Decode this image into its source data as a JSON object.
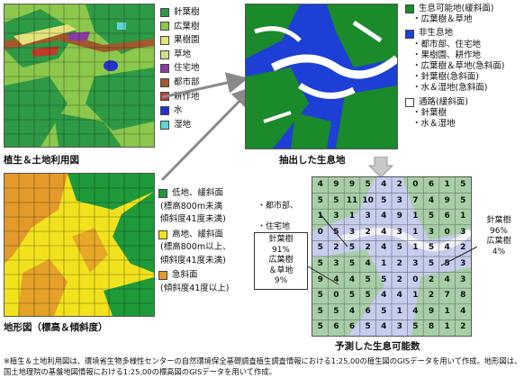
{
  "vegetation_legend": [
    {
      "label": "針葉樹",
      "color": "#2e9a45"
    },
    {
      "label": "広葉樹",
      "color": "#8cc84b"
    },
    {
      "label": "果樹園",
      "color": "#e3e37a"
    },
    {
      "label": "草地",
      "color": "#cde08a"
    },
    {
      "label": "住宅地",
      "color": "#8b3aa4"
    },
    {
      "label": "都市部",
      "color": "#a05a2c"
    },
    {
      "label": "耕作地",
      "color": "#c23b2c"
    },
    {
      "label": "水",
      "color": "#2433c9"
    },
    {
      "label": "湿地",
      "color": "#5fd6d6"
    }
  ],
  "vegetation_caption": "植生＆土地利用図",
  "terrain_legend": [
    {
      "label": "低地、緩斜面",
      "sub": [
        "(標高800m未満",
        "傾斜度41度未満)"
      ],
      "color": "#1f9a3a"
    },
    {
      "label": "高地、緩斜面",
      "sub": [
        "(標高800m以上、",
        "傾斜度41度未満)"
      ],
      "color": "#f2e21d"
    },
    {
      "label": "急斜面",
      "sub": [
        "(傾斜度41度以上)"
      ],
      "color": "#e39a2a"
    }
  ],
  "terrain_caption": "地形図（標高＆傾斜度）",
  "habitat_caption": "抽出した生息地",
  "habitat_legend": {
    "possible": {
      "label": "生息可能地(緩斜面)",
      "items": [
        "・広葉樹＆草地"
      ],
      "color": "#1a8a2a"
    },
    "non": {
      "label": "非生息地",
      "items": [
        "・都市部、住宅地",
        "・果樹園、耕作地",
        "・広葉樹＆草地(急斜面)",
        "・針葉樹(急斜面)",
        "・水＆湿地(急斜面)"
      ],
      "color": "#1d3fd6"
    },
    "passage": {
      "label": "通路(緩斜面)",
      "items": [
        "・針葉樹",
        "・水＆湿地"
      ],
      "color": "#ffffff"
    }
  },
  "prediction_caption": "予測した生息可能数",
  "prediction_grid": [
    [
      4,
      9,
      9,
      5,
      4,
      2,
      0,
      6,
      1,
      5
    ],
    [
      5,
      5,
      11,
      10,
      5,
      3,
      7,
      4,
      9,
      5
    ],
    [
      1,
      3,
      1,
      3,
      4,
      9,
      1,
      5,
      6,
      1
    ],
    [
      0,
      5,
      3,
      2,
      4,
      3,
      1,
      3,
      0,
      3
    ],
    [
      5,
      2,
      5,
      2,
      4,
      5,
      1,
      5,
      4,
      2
    ],
    [
      5,
      3,
      5,
      4,
      1,
      2,
      3,
      5,
      5,
      3
    ],
    [
      9,
      4,
      4,
      5,
      5,
      2,
      0,
      2,
      4,
      3
    ],
    [
      5,
      0,
      5,
      5,
      4,
      4,
      1,
      2,
      7,
      8
    ],
    [
      5,
      5,
      4,
      6,
      5,
      1,
      4,
      9,
      1,
      4
    ],
    [
      5,
      6,
      6,
      5,
      4,
      3,
      5,
      8,
      1,
      2
    ]
  ],
  "callouts": {
    "urban": [
      "・都市部、",
      "・住宅地"
    ],
    "conifer_left": "針葉樹\n91%\n広葉樹\n＆草地\n9%",
    "conifer_right": "針葉樹\n96%\n広葉樹\n4%"
  },
  "footnote": "※植生＆土地利用図は、環境省生物多様性センターの自然環境保全基礎調査植生調査情報における1:25,00の植生図のGISデータを用いて作成。地形図は、国土地理院の基盤地図情報における1:25,00の標高図のGISデータを用いて作成。"
}
